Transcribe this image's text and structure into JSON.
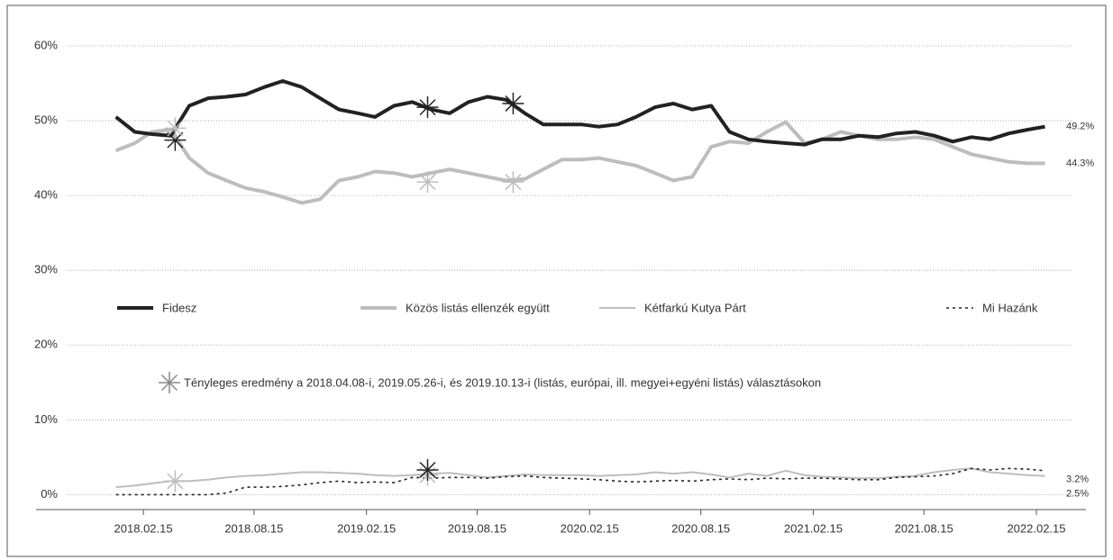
{
  "chart_data": {
    "type": "line",
    "x": [
      "2018.01.01",
      "2018.02.01",
      "2018.03.01",
      "2018.04.01",
      "2018.05.01",
      "2018.06.01",
      "2018.07.01",
      "2018.08.01",
      "2018.09.01",
      "2018.10.01",
      "2018.11.01",
      "2018.12.01",
      "2019.01.01",
      "2019.02.01",
      "2019.03.01",
      "2019.04.01",
      "2019.05.01",
      "2019.06.01",
      "2019.07.01",
      "2019.08.01",
      "2019.09.01",
      "2019.10.01",
      "2019.11.01",
      "2019.12.01",
      "2020.01.01",
      "2020.02.01",
      "2020.03.01",
      "2020.04.01",
      "2020.05.01",
      "2020.06.01",
      "2020.07.01",
      "2020.08.01",
      "2020.09.01",
      "2020.10.01",
      "2020.11.01",
      "2020.12.01",
      "2021.01.01",
      "2021.02.01",
      "2021.03.01",
      "2021.04.01",
      "2021.05.01",
      "2021.06.01",
      "2021.07.01",
      "2021.08.01",
      "2021.09.01",
      "2021.10.01",
      "2021.11.01",
      "2021.12.01",
      "2022.01.01",
      "2022.02.01",
      "2022.03.01"
    ],
    "series": [
      {
        "name": "Fidesz",
        "color": "#222222",
        "width": 4,
        "dash": null,
        "values": [
          50.5,
          48.5,
          48.2,
          48,
          52,
          53,
          53.2,
          53.5,
          54.5,
          55.3,
          54.5,
          53,
          51.5,
          51,
          50.5,
          52,
          52.5,
          51.5,
          51,
          52.5,
          53.2,
          52.8,
          51,
          49.5,
          49.5,
          49.5,
          49.2,
          49.5,
          50.5,
          51.8,
          52.3,
          51.5,
          52,
          48.5,
          47.5,
          47.2,
          47,
          46.8,
          47.5,
          47.5,
          48,
          47.8,
          48.3,
          48.5,
          48,
          47.2,
          47.8,
          47.5,
          48.3,
          48.8,
          49.2
        ],
        "end_label": "49.2%",
        "marker_values": [
          47.4,
          51.8,
          52.3
        ]
      },
      {
        "name": "Közös listás ellenzék együtt",
        "color": "#bdbdbd",
        "width": 4,
        "dash": null,
        "values": [
          46,
          47,
          48.5,
          48.8,
          45,
          43,
          42,
          41,
          40.5,
          39.8,
          39,
          39.5,
          42,
          42.5,
          43.2,
          43,
          42.5,
          43,
          43.5,
          43,
          42.5,
          42,
          42.2,
          43.5,
          44.8,
          44.8,
          45,
          44.5,
          44,
          43,
          42,
          42.5,
          46.5,
          47.2,
          47,
          48.5,
          49.8,
          47,
          47.5,
          48.5,
          48,
          47.5,
          47.5,
          47.8,
          47.5,
          46.5,
          45.5,
          45,
          44.5,
          44.3,
          44.3
        ],
        "end_label": "44.3%",
        "marker_values": [
          49,
          41.8,
          41.8
        ]
      },
      {
        "name": "Kétfarkú Kutya Párt",
        "color": "#bdbdbd",
        "width": 2,
        "dash": null,
        "values": [
          1,
          1.2,
          1.5,
          1.8,
          1.8,
          2,
          2.3,
          2.5,
          2.6,
          2.8,
          3,
          3,
          2.9,
          2.8,
          2.6,
          2.5,
          2.6,
          2.8,
          2.9,
          2.6,
          2.3,
          2.5,
          2.7,
          2.6,
          2.6,
          2.6,
          2.5,
          2.6,
          2.7,
          3,
          2.8,
          3,
          2.7,
          2.3,
          2.8,
          2.5,
          3.2,
          2.6,
          2.4,
          2.3,
          2.2,
          2.2,
          2.4,
          2.5,
          3,
          3.3,
          3.5,
          3,
          2.8,
          2.6,
          2.5
        ],
        "end_label": "2.5%",
        "marker_values": [
          1.8,
          2.6,
          null
        ]
      },
      {
        "name": "Mi Hazánk",
        "color": "#222222",
        "width": 1.6,
        "dash": "3 4",
        "values": [
          0,
          0,
          0,
          0,
          0,
          0,
          0.2,
          1,
          1,
          1.1,
          1.3,
          1.6,
          1.8,
          1.6,
          1.7,
          1.6,
          2.3,
          2.2,
          2.3,
          2.3,
          2.2,
          2.4,
          2.5,
          2.3,
          2.2,
          2.1,
          2,
          1.8,
          1.7,
          1.8,
          1.9,
          1.8,
          2,
          2.1,
          2,
          2.2,
          2.1,
          2.2,
          2.2,
          2.1,
          2,
          2,
          2.3,
          2.4,
          2.5,
          2.8,
          3.5,
          3.3,
          3.5,
          3.4,
          3.2
        ],
        "end_label": "3.2%",
        "marker_values": [
          null,
          3.3,
          null
        ]
      }
    ],
    "elections": [
      "2018.04.08",
      "2019.05.26",
      "2019.10.13"
    ],
    "marker_legend": "Tényleges eredmény a 2018.04.08-i, 2019.05.26-i, és 2019.10.13-i (listás, európai, ill. megyei+egyéni listás) választásokon",
    "xlim": [
      "2017.10.14",
      "2022.04.15"
    ],
    "xticks": [
      "2018.02.15",
      "2018.08.15",
      "2019.02.15",
      "2019.08.15",
      "2020.02.15",
      "2020.08.15",
      "2021.02.15",
      "2021.08.15",
      "2022.02.15"
    ],
    "ylim": [
      -2,
      60
    ],
    "yticks": [
      {
        "value": 0,
        "label": "0%"
      },
      {
        "value": 10,
        "label": "10%"
      },
      {
        "value": 20,
        "label": "20%"
      },
      {
        "value": 30,
        "label": "30%"
      },
      {
        "value": 40,
        "label": "40%"
      },
      {
        "value": 50,
        "label": "50%"
      },
      {
        "value": 60,
        "label": "60%"
      }
    ],
    "grid": true
  }
}
